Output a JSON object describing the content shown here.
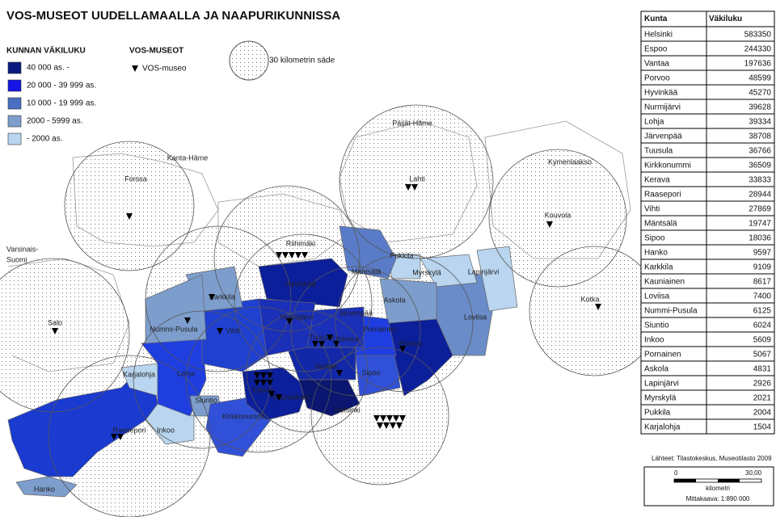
{
  "header": {
    "title": "VOS-MUSEOT UUDELLAMAALLA JA NAAPURIKUNNISSA"
  },
  "legend": {
    "population_title": "KUNNAN VÄKILUKU",
    "population_classes": [
      {
        "label": "40 000 as. -",
        "color": "#0a1a80"
      },
      {
        "label": "20 000 - 39 999 as.",
        "color": "#1414e6"
      },
      {
        "label": "10 000 - 19 999 as.",
        "color": "#4a6fc2"
      },
      {
        "label": "2000 - 5999 as.",
        "color": "#7d9ecd"
      },
      {
        "label": "- 2000 as.",
        "color": "#b9d5ef"
      }
    ],
    "museum_title": "VOS-MUSEOT",
    "museum_label": "VOS-museo",
    "radius_label": "30 kilometrin säde"
  },
  "table": {
    "headers": [
      "Kunta",
      "Väkiluku"
    ],
    "rows": [
      [
        "Helsinki",
        583350
      ],
      [
        "Espoo",
        244330
      ],
      [
        "Vantaa",
        197636
      ],
      [
        "Porvoo",
        48599
      ],
      [
        "Hyvinkää",
        45270
      ],
      [
        "Nurmijärvi",
        39628
      ],
      [
        "Lohja",
        39334
      ],
      [
        "Järvenpää",
        38708
      ],
      [
        "Tuusula",
        36766
      ],
      [
        "Kirkkonummi",
        36509
      ],
      [
        "Kerava",
        33833
      ],
      [
        "Raasepori",
        28944
      ],
      [
        "Vihti",
        27869
      ],
      [
        "Mäntsälä",
        19747
      ],
      [
        "Sipoo",
        18036
      ],
      [
        "Hanko",
        9597
      ],
      [
        "Karkkila",
        9109
      ],
      [
        "Kauniainen",
        8617
      ],
      [
        "Loviisa",
        7400
      ],
      [
        "Nummi-Pusula",
        6125
      ],
      [
        "Siuntio",
        6024
      ],
      [
        "Inkoo",
        5609
      ],
      [
        "Pornainen",
        5067
      ],
      [
        "Askola",
        4831
      ],
      [
        "Lapinjärvi",
        2926
      ],
      [
        "Myrskylä",
        2021
      ],
      [
        "Pukkila",
        2004
      ],
      [
        "Karjalohja",
        1504
      ]
    ]
  },
  "places": [
    "Kanta-Häme",
    "Forssa",
    "Päijät-Häme",
    "Lahti",
    "Kymenlaakso",
    "Kouvola",
    "Varsinais-",
    "Suomi",
    "Salo",
    "Riihimäki",
    "Hyvinkää",
    "Mäntsälä",
    "Pukkila",
    "Myrskylä",
    "Lapinjärvi",
    "Karkkila",
    "Nurmijärvi",
    "Järvenpää",
    "Askola",
    "Loviisa",
    "Kotka",
    "Nummi-Pusula",
    "Vihti",
    "Tuusula",
    "Kerava",
    "Pornainen",
    "Porvoo",
    "Sipoo",
    "Vantaa",
    "Karjalohja",
    "Lohja",
    "Espoo",
    "Kauniainen",
    "Siuntio",
    "Helsinki",
    "Kirkkonummi",
    "Raasepori",
    "Inkoo",
    "Hanko"
  ],
  "source": "Lähteet: Tilastokeskus, Museotilasto 2009",
  "scale": {
    "start": "0",
    "end": "30,00",
    "unit": "kilometri",
    "ratio": "Mittakaava:  1:890 000"
  }
}
